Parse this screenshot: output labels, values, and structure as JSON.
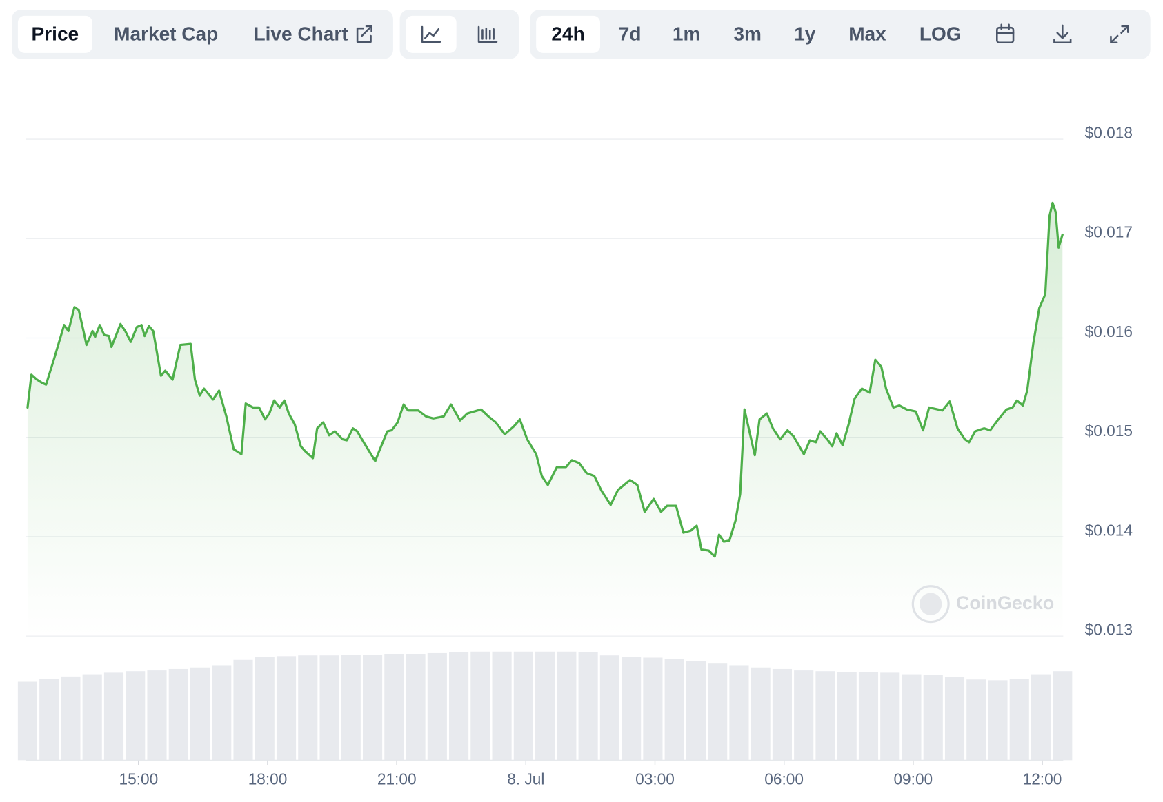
{
  "toolbar": {
    "views": [
      "Price",
      "Market Cap",
      "Live Chart"
    ],
    "ranges": [
      "24h",
      "7d",
      "1m",
      "3m",
      "1y",
      "Max",
      "LOG"
    ]
  },
  "chart_data": {
    "type": "line",
    "watermark": "CoinGecko",
    "x": [
      12.42,
      12.51,
      12.64,
      12.75,
      12.85,
      13.03,
      13.27,
      13.37,
      13.51,
      13.61,
      13.72,
      13.79,
      13.93,
      13.99,
      14.1,
      14.2,
      14.31,
      14.37,
      14.48,
      14.58,
      14.69,
      14.82,
      14.96,
      15.07,
      15.14,
      15.24,
      15.34,
      15.52,
      15.62,
      15.79,
      15.97,
      16.21,
      16.31,
      16.42,
      16.52,
      16.73,
      16.87,
      17.04,
      17.21,
      17.39,
      17.49,
      17.66,
      17.8,
      17.94,
      18.04,
      18.15,
      18.28,
      18.39,
      18.49,
      18.63,
      18.77,
      18.87,
      19.05,
      19.15,
      19.29,
      19.43,
      19.56,
      19.74,
      19.84,
      19.98,
      20.08,
      20.26,
      20.5,
      20.6,
      20.78,
      20.88,
      21.02,
      21.16,
      21.26,
      21.5,
      21.68,
      21.85,
      22.09,
      22.26,
      22.47,
      22.64,
      22.96,
      23.13,
      23.3,
      23.51,
      23.72,
      23.86,
      24.03,
      24.24,
      24.37,
      24.51,
      24.72,
      24.93,
      25.07,
      25.24,
      25.41,
      25.59,
      25.76,
      25.97,
      26.14,
      26.42,
      26.59,
      26.76,
      26.97,
      27.14,
      27.28,
      27.49,
      27.66,
      27.83,
      27.97,
      28.08,
      28.25,
      28.39,
      28.49,
      28.6,
      28.73,
      28.87,
      28.98,
      29.08,
      29.32,
      29.43,
      29.6,
      29.74,
      29.91,
      30.08,
      30.22,
      30.46,
      30.6,
      30.74,
      30.84,
      31.02,
      31.12,
      31.22,
      31.36,
      31.5,
      31.64,
      31.81,
      31.99,
      32.12,
      32.26,
      32.37,
      32.54,
      32.68,
      32.85,
      33.06,
      33.23,
      33.37,
      33.68,
      33.85,
      34.03,
      34.2,
      34.3,
      34.44,
      34.65,
      34.79,
      34.96,
      35.17,
      35.31,
      35.41,
      35.55,
      35.65,
      35.79,
      35.93,
      36.07,
      36.17,
      36.24,
      36.31,
      36.38,
      36.47
    ],
    "series": [
      {
        "color": "#4eaf4a",
        "values": [
          0.0153,
          0.01563,
          0.01558,
          0.01555,
          0.01553,
          0.01578,
          0.01613,
          0.01607,
          0.01631,
          0.01628,
          0.01607,
          0.01593,
          0.01607,
          0.01601,
          0.01613,
          0.01603,
          0.01602,
          0.01591,
          0.01603,
          0.01614,
          0.01607,
          0.01596,
          0.01611,
          0.01613,
          0.01602,
          0.01612,
          0.01607,
          0.01562,
          0.01567,
          0.01558,
          0.01593,
          0.01594,
          0.01558,
          0.01542,
          0.01549,
          0.01538,
          0.01547,
          0.01521,
          0.01488,
          0.01483,
          0.01534,
          0.0153,
          0.0153,
          0.01518,
          0.01524,
          0.01537,
          0.0153,
          0.01537,
          0.01524,
          0.01513,
          0.01491,
          0.01486,
          0.01479,
          0.01509,
          0.01515,
          0.01502,
          0.01506,
          0.01498,
          0.01497,
          0.01509,
          0.01506,
          0.01493,
          0.01476,
          0.01487,
          0.01506,
          0.01507,
          0.01515,
          0.01533,
          0.01527,
          0.01527,
          0.01521,
          0.01519,
          0.01521,
          0.01533,
          0.01517,
          0.01524,
          0.01528,
          0.01521,
          0.01515,
          0.01503,
          0.01511,
          0.01518,
          0.01498,
          0.01483,
          0.01461,
          0.01452,
          0.0147,
          0.0147,
          0.01477,
          0.01474,
          0.01464,
          0.01461,
          0.01446,
          0.01432,
          0.01447,
          0.01457,
          0.01452,
          0.01425,
          0.01438,
          0.01425,
          0.01431,
          0.01431,
          0.01404,
          0.01406,
          0.01411,
          0.01387,
          0.01386,
          0.0138,
          0.01402,
          0.01395,
          0.01396,
          0.01416,
          0.01443,
          0.01528,
          0.01482,
          0.01518,
          0.01524,
          0.01509,
          0.01498,
          0.01507,
          0.01501,
          0.01483,
          0.01497,
          0.01495,
          0.01506,
          0.01497,
          0.01491,
          0.01504,
          0.01492,
          0.01513,
          0.01539,
          0.01549,
          0.01545,
          0.01578,
          0.01571,
          0.01549,
          0.0153,
          0.01532,
          0.01528,
          0.01526,
          0.01507,
          0.0153,
          0.01527,
          0.01536,
          0.01509,
          0.01498,
          0.01495,
          0.01506,
          0.01509,
          0.01507,
          0.01517,
          0.01528,
          0.0153,
          0.01537,
          0.01532,
          0.01547,
          0.01594,
          0.0163,
          0.01644,
          0.01723,
          0.01736,
          0.01727,
          0.01691,
          0.01704
        ]
      }
    ],
    "volume": {
      "color": "#e8eaee",
      "values": [
        104,
        108,
        111,
        114,
        116,
        118,
        119,
        121,
        123,
        126,
        133,
        137,
        138,
        139,
        139,
        140,
        140,
        141,
        141,
        142,
        143,
        144,
        144,
        144,
        144,
        144,
        143,
        139,
        137,
        136,
        134,
        131,
        129,
        126,
        123,
        121,
        119,
        118,
        117,
        117,
        116,
        114,
        113,
        110,
        107,
        106,
        108,
        114,
        118
      ]
    },
    "xlim": [
      12.42,
      36.47
    ],
    "xticks": [
      {
        "value": 15,
        "label": "15:00"
      },
      {
        "value": 18,
        "label": "18:00"
      },
      {
        "value": 21,
        "label": "21:00"
      },
      {
        "value": 24,
        "label": "8. Jul"
      },
      {
        "value": 27,
        "label": "03:00"
      },
      {
        "value": 30,
        "label": "06:00"
      },
      {
        "value": 33,
        "label": "09:00"
      },
      {
        "value": 36,
        "label": "12:00"
      }
    ],
    "ylim": [
      0.013,
      0.018
    ],
    "yticks": [
      {
        "value": 0.013,
        "label": "$0.013"
      },
      {
        "value": 0.014,
        "label": "$0.014"
      },
      {
        "value": 0.015,
        "label": "$0.015"
      },
      {
        "value": 0.016,
        "label": "$0.016"
      },
      {
        "value": 0.017,
        "label": "$0.017"
      },
      {
        "value": 0.018,
        "label": "$0.018"
      }
    ],
    "grid": true
  }
}
